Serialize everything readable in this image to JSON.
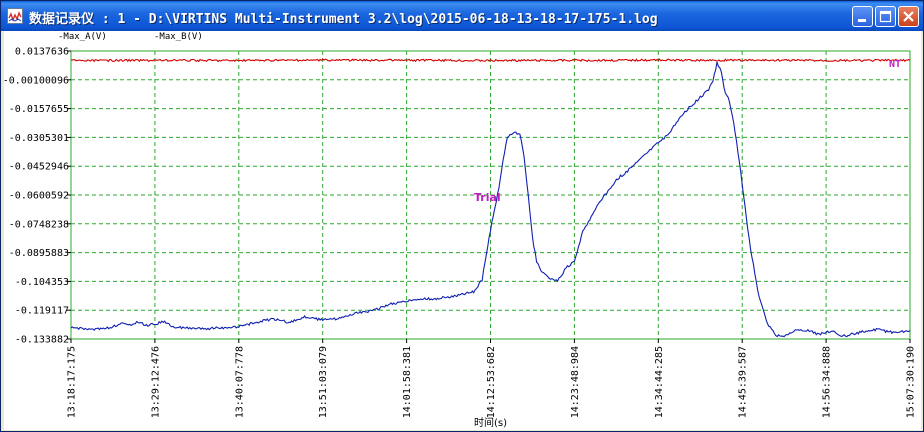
{
  "window": {
    "title": "数据记录仪 : 1 - D:\\VIRTINS Multi-Instrument 3.2\\log\\2015-06-18-13-18-17-175-1.log"
  },
  "colors": {
    "series_a": "#1020b0",
    "series_b": "#d00000",
    "grid": "#2ea82e",
    "annotation": "#c020c0",
    "tick_text": "#000000"
  },
  "chart_data": {
    "type": "line",
    "title": "",
    "xlabel": "时间(s)",
    "ylabel": "",
    "legend": [
      "-Max_A(V)",
      "-Max_B(V)"
    ],
    "annotations": [
      {
        "text": "Trial"
      },
      {
        "text": "NT"
      }
    ],
    "y_ticks": [
      "0.0137636",
      "-0.00100096",
      "-0.0157655",
      "-0.0305301",
      "-0.0452946",
      "-0.0600592",
      "-0.0748238",
      "-0.0895883",
      "-0.104353",
      "-0.119117",
      "-0.133882"
    ],
    "x_ticks": [
      "13:18:17:175",
      "13:29:12:476",
      "13:40:07:778",
      "13:51:03:079",
      "14:01:58:381",
      "14:12:53:682",
      "14:23:48:984",
      "14:34:44:285",
      "14:45:39:587",
      "14:56:34:888",
      "15:07:30:190"
    ],
    "xlim": [
      0,
      10
    ],
    "ylim": [
      -0.133882,
      0.0137636
    ],
    "series": [
      {
        "name": "Max_A(V)",
        "x": [
          0,
          0.2,
          0.4,
          0.5,
          0.6,
          0.7,
          0.8,
          0.9,
          1.0,
          1.1,
          1.2,
          1.3,
          1.4,
          1.5,
          1.6,
          1.7,
          1.8,
          2.0,
          2.2,
          2.4,
          2.6,
          2.8,
          3.0,
          3.2,
          3.4,
          3.6,
          3.8,
          4.0,
          4.2,
          4.4,
          4.6,
          4.8,
          4.9,
          5.0,
          5.1,
          5.15,
          5.2,
          5.25,
          5.3,
          5.35,
          5.4,
          5.45,
          5.5,
          5.55,
          5.6,
          5.65,
          5.7,
          5.75,
          5.8,
          5.9,
          6.0,
          6.05,
          6.1,
          6.2,
          6.3,
          6.4,
          6.5,
          6.6,
          6.7,
          6.8,
          6.9,
          7.0,
          7.1,
          7.2,
          7.3,
          7.4,
          7.5,
          7.6,
          7.65,
          7.7,
          7.75,
          7.8,
          7.85,
          7.9,
          7.95,
          8.0,
          8.05,
          8.1,
          8.15,
          8.2,
          8.3,
          8.4,
          8.5,
          8.6,
          8.7,
          8.8,
          8.9,
          9.0,
          9.1,
          9.2,
          9.4,
          9.6,
          9.8,
          10.0
        ],
        "values": [
          -0.1283,
          -0.1289,
          -0.1285,
          -0.1275,
          -0.126,
          -0.1268,
          -0.1252,
          -0.127,
          -0.1262,
          -0.125,
          -0.1272,
          -0.128,
          -0.1282,
          -0.1285,
          -0.1287,
          -0.1283,
          -0.1284,
          -0.1275,
          -0.1255,
          -0.1235,
          -0.1253,
          -0.1225,
          -0.1242,
          -0.1232,
          -0.1205,
          -0.1195,
          -0.116,
          -0.1145,
          -0.1135,
          -0.113,
          -0.1115,
          -0.1095,
          -0.1035,
          -0.078,
          -0.056,
          -0.042,
          -0.0305,
          -0.0288,
          -0.0282,
          -0.029,
          -0.04,
          -0.061,
          -0.082,
          -0.094,
          -0.099,
          -0.101,
          -0.1025,
          -0.1035,
          -0.104,
          -0.0975,
          -0.094,
          -0.086,
          -0.079,
          -0.071,
          -0.064,
          -0.058,
          -0.052,
          -0.049,
          -0.045,
          -0.041,
          -0.037,
          -0.033,
          -0.03,
          -0.024,
          -0.018,
          -0.014,
          -0.01,
          -0.006,
          -0.002,
          0.008,
          0.003,
          -0.008,
          -0.012,
          -0.023,
          -0.038,
          -0.054,
          -0.072,
          -0.088,
          -0.1,
          -0.112,
          -0.126,
          -0.132,
          -0.133,
          -0.13,
          -0.129,
          -0.1295,
          -0.1315,
          -0.1305,
          -0.13,
          -0.1325,
          -0.1305,
          -0.129,
          -0.1305,
          -0.1295
        ]
      },
      {
        "name": "Max_B(V)",
        "x": [
          0,
          1,
          2,
          3,
          4,
          5,
          6,
          7,
          8,
          9,
          10
        ],
        "values": [
          0.0088,
          0.009,
          0.0089,
          0.0091,
          0.009,
          0.0089,
          0.009,
          0.0091,
          0.009,
          0.0089,
          0.009
        ]
      }
    ]
  }
}
